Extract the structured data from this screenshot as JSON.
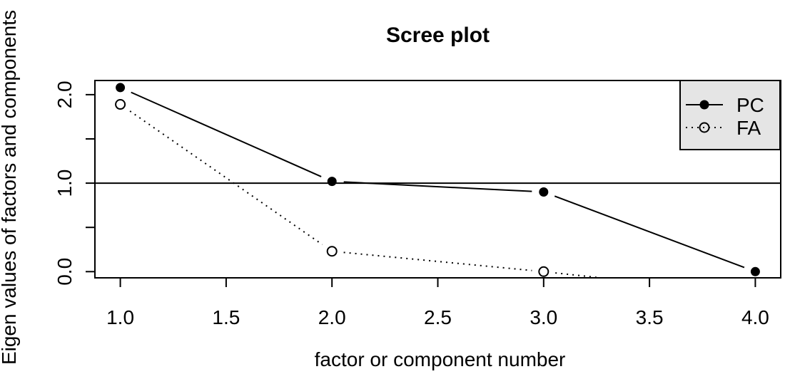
{
  "figure": {
    "title": "Scree plot"
  },
  "chart_data": {
    "type": "line",
    "title": "Scree plot",
    "xlabel": "factor or component number",
    "ylabel": "Eigen values of factors and components",
    "x": [
      1,
      2,
      3,
      4
    ],
    "series": [
      {
        "name": "PC",
        "values": [
          2.08,
          1.02,
          0.9,
          0.0
        ],
        "marker": "filled-circle",
        "line_style": "solid",
        "color": "#000000"
      },
      {
        "name": "FA",
        "values": [
          1.89,
          0.23,
          0.0,
          -0.26
        ],
        "marker": "open-circle",
        "line_style": "dotted",
        "color": "#000000"
      }
    ],
    "reference_line_y": 1.0,
    "xlim": [
      0.88,
      4.12
    ],
    "ylim": [
      -0.07,
      2.16
    ],
    "x_ticks": [
      {
        "v": 1.0,
        "label": "1.0"
      },
      {
        "v": 1.5,
        "label": "1.5"
      },
      {
        "v": 2.0,
        "label": "2.0"
      },
      {
        "v": 2.5,
        "label": "2.5"
      },
      {
        "v": 3.0,
        "label": "3.0"
      },
      {
        "v": 3.5,
        "label": "3.5"
      },
      {
        "v": 4.0,
        "label": "4.0"
      }
    ],
    "y_ticks": [
      {
        "v": 0.0,
        "label": "0.0"
      },
      {
        "v": 0.5,
        "label": ""
      },
      {
        "v": 1.0,
        "label": "1.0"
      },
      {
        "v": 1.5,
        "label": ""
      },
      {
        "v": 2.0,
        "label": "2.0"
      }
    ],
    "grid": false,
    "legend": {
      "position": "top-right",
      "entries": [
        {
          "label": "PC",
          "marker": "filled-circle",
          "line_style": "solid"
        },
        {
          "label": "FA",
          "marker": "open-circle",
          "line_style": "dotted"
        }
      ],
      "text_color": "#00a000",
      "bg_color": "#e5e5e5",
      "border_color": "#000000"
    },
    "axis_color": "#000000",
    "background_color": "#ffffff"
  }
}
